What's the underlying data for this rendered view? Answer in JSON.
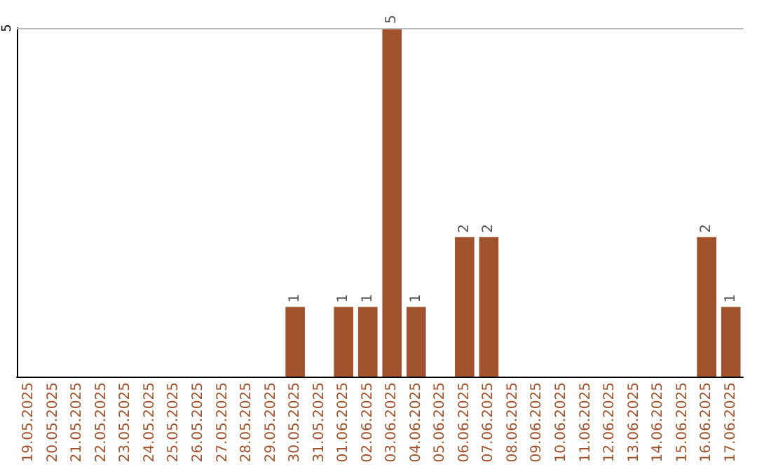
{
  "chart_data": {
    "type": "bar",
    "categories": [
      "19.05.2025",
      "20.05.2025",
      "21.05.2025",
      "22.05.2025",
      "23.05.2025",
      "24.05.2025",
      "25.05.2025",
      "26.05.2025",
      "27.05.2025",
      "28.05.2025",
      "29.05.2025",
      "30.05.2025",
      "31.05.2025",
      "01.06.2025",
      "02.06.2025",
      "03.06.2025",
      "04.06.2025",
      "05.06.2025",
      "06.06.2025",
      "07.06.2025",
      "08.06.2025",
      "09.06.2025",
      "10.06.2025",
      "11.06.2025",
      "12.06.2025",
      "13.06.2025",
      "14.06.2025",
      "15.06.2025",
      "16.06.2025",
      "17.06.2025"
    ],
    "values": [
      0,
      0,
      0,
      0,
      0,
      0,
      0,
      0,
      0,
      0,
      0,
      1,
      0,
      1,
      1,
      5,
      1,
      0,
      2,
      2,
      0,
      0,
      0,
      0,
      0,
      0,
      0,
      0,
      2,
      1
    ],
    "value_labels": [
      null,
      null,
      null,
      null,
      null,
      null,
      null,
      null,
      null,
      null,
      null,
      "1",
      null,
      "1",
      "1",
      "5",
      "1",
      null,
      "2",
      "2",
      null,
      null,
      null,
      null,
      null,
      null,
      null,
      null,
      "2",
      "1"
    ],
    "color": "#a0522d",
    "ylim": [
      0,
      5
    ],
    "yticks": [
      5
    ]
  }
}
